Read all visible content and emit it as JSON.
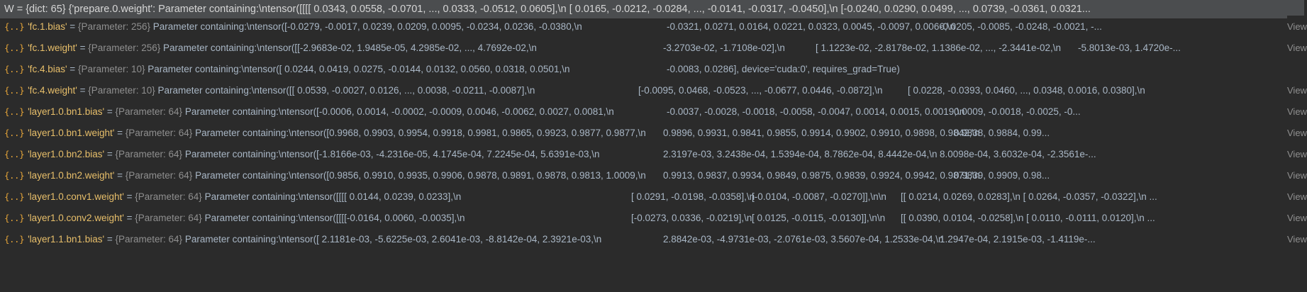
{
  "header": {
    "label": "W = {dict: 65} {'prepare.0.weight': Parameter containing:\\ntensor([[[[ 0.0343,  0.0558, -0.0701,  ...,  0.0333, -0.0512,  0.0605],\\n        [ 0.0165, -0.0212, -0.0284,  ..., -0.0141, -0.0317, -0.0450],\\n        [-0.0240,  0.0290,  0.0499,  ...,  0.0739, -0.0361,  0.0321..."
  },
  "view_label": "View",
  "rows": [
    {
      "key": "'fc.1.bias'",
      "type": "{Parameter: 256}",
      "text1": "Parameter containing:\\ntensor([-0.0279, -0.0017,  0.0239,  0.0209,  0.0095, -0.0234,  0.0236, -0.0380,\\n",
      "text2": "-0.0321,  0.0271,  0.0164,  0.0221,  0.0323,  0.0045, -0.0097,  0.0066,\\n",
      "text3": "-0.0205, -0.0085, -0.0248, -0.0021, -...",
      "text4": "",
      "view": true
    },
    {
      "key": "'fc.1.weight'",
      "type": "{Parameter: 256}",
      "text1": "Parameter containing:\\ntensor([[-2.9683e-02,  1.9485e-05,  4.2985e-02,  ...,  4.7692e-02,\\n",
      "text2": "-3.2703e-02, -1.7108e-02],\\n",
      "text3": "[ 1.1223e-02, -2.8178e-02,  1.1386e-02,  ..., -2.3441e-02,\\n",
      "text4": "-5.8013e-03,  1.4720e-...",
      "view": true
    },
    {
      "key": "'fc.4.bias'",
      "type": "{Parameter: 10}",
      "text1": "Parameter containing:\\ntensor([ 0.0244,  0.0419,  0.0275, -0.0144,  0.0132,  0.0560,  0.0318,  0.0501,\\n",
      "text2": "-0.0083,  0.0286], device='cuda:0', requires_grad=True)",
      "text3": "",
      "text4": "",
      "view": false
    },
    {
      "key": "'fc.4.weight'",
      "type": "{Parameter: 10}",
      "text1": "Parameter containing:\\ntensor([[ 0.0539, -0.0027,  0.0126,  ...,  0.0038, -0.0211, -0.0087],\\n",
      "text2": "[-0.0095,  0.0468, -0.0523,  ..., -0.0677,  0.0446, -0.0872],\\n",
      "text3": "[ 0.0228, -0.0393,  0.0460,  ...,  0.0348,  0.0016,  0.0380],\\n",
      "text4": "...",
      "view": true
    },
    {
      "key": "'layer1.0.bn1.bias'",
      "type": "{Parameter: 64}",
      "text1": "Parameter containing:\\ntensor([-0.0006,  0.0014, -0.0002, -0.0009,  0.0046, -0.0062,  0.0027,  0.0081,\\n",
      "text2": "-0.0037, -0.0028, -0.0018, -0.0058, -0.0047,  0.0014,  0.0015,  0.0019,\\n",
      "text3": "0.0009, -0.0018, -0.0025, -0...",
      "text4": "",
      "view": true
    },
    {
      "key": "'layer1.0.bn1.weight'",
      "type": "{Parameter: 64}",
      "text1": "Parameter containing:\\ntensor([0.9968, 0.9903, 0.9954, 0.9918, 0.9981, 0.9865, 0.9923, 0.9877, 0.9877,\\n",
      "text2": "0.9896, 0.9931, 0.9841, 0.9855, 0.9914, 0.9902, 0.9910, 0.9898, 0.9842,\\n",
      "text3": "0.9838, 0.9884, 0.99...",
      "text4": "",
      "view": true
    },
    {
      "key": "'layer1.0.bn2.bias'",
      "type": "{Parameter: 64}",
      "text1": "Parameter containing:\\ntensor([-1.8166e-03, -4.2316e-05,  4.1745e-04,  7.2245e-04,  5.6391e-03,\\n",
      "text2": "2.3197e-03,  3.2438e-04,  1.5394e-04,  8.7862e-04,  8.4442e-04,\\n",
      "text3": "8.0098e-04,  3.6032e-04, -2.3561e-...",
      "text4": "",
      "view": true
    },
    {
      "key": "'layer1.0.bn2.weight'",
      "type": "{Parameter: 64}",
      "text1": "Parameter containing:\\ntensor([0.9856, 0.9910, 0.9935, 0.9906, 0.9878, 0.9891, 0.9878, 0.9813, 1.0009,\\n",
      "text2": "0.9913, 0.9837, 0.9934, 0.9849, 0.9875, 0.9839, 0.9924, 0.9942, 0.9871,\\n",
      "text3": "0.9839, 0.9909, 0.98...",
      "text4": "",
      "view": true
    },
    {
      "key": "'layer1.0.conv1.weight'",
      "type": "{Parameter: 64}",
      "text1": "Parameter containing:\\ntensor([[[[ 0.0144,  0.0239,  0.0233],\\n",
      "text2": "[ 0.0291, -0.0198, -0.0358],\\n",
      "text3": "[-0.0104, -0.0087, -0.0270]],\\n\\n",
      "text4": "[[ 0.0214,  0.0269,  0.0283],\\n        [ 0.0264, -0.0357, -0.0322],\\n  ...",
      "view": true
    },
    {
      "key": "'layer1.0.conv2.weight'",
      "type": "{Parameter: 64}",
      "text1": "Parameter containing:\\ntensor([[[[-0.0164,  0.0060, -0.0035],\\n",
      "text2": "[-0.0273,  0.0336, -0.0219],\\n",
      "text3": "[ 0.0125, -0.0115, -0.0130]],\\n\\n",
      "text4": "[[ 0.0390,  0.0104, -0.0258],\\n        [ 0.0110, -0.0111,  0.0120],\\n  ...",
      "view": true
    },
    {
      "key": "'layer1.1.bn1.bias'",
      "type": "{Parameter: 64}",
      "text1": "Parameter containing:\\ntensor([ 2.1181e-03, -5.6225e-03,  2.6041e-03, -8.8142e-04,  2.3921e-03,\\n",
      "text2": "2.8842e-03, -4.9731e-03, -2.0761e-03,  3.5607e-04,  1.2533e-04,\\n",
      "text3": "1.2947e-04,  2.1915e-03, -1.4119e-...",
      "text4": "",
      "view": true
    }
  ]
}
